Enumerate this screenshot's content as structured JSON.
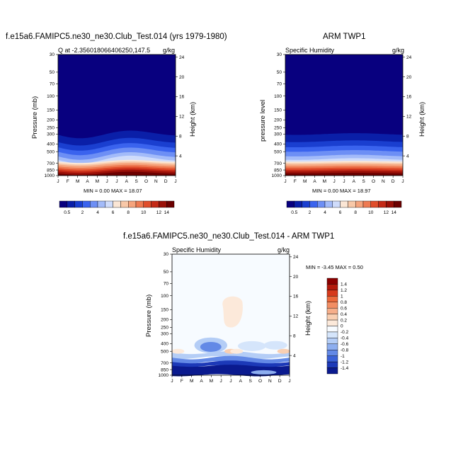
{
  "chart_data": [
    {
      "type": "heatmap",
      "title": "f.e15a6.FAMIPC5.ne30_ne30.Club_Test.014 (yrs 1979-1980)",
      "subtitle_left": "Q at -2.356018066406250,147.5",
      "units": "g/kg",
      "ylabel": "Pressure (mb)",
      "y2label": "Height (km)",
      "x_ticks": [
        "J",
        "F",
        "M",
        "A",
        "M",
        "J",
        "J",
        "A",
        "S",
        "O",
        "N",
        "D",
        "J"
      ],
      "y_ticks": [
        "30",
        "50",
        "70",
        "100",
        "150",
        "200",
        "250",
        "300",
        "400",
        "500",
        "700",
        "850",
        "1000"
      ],
      "y2_ticks": [
        "24",
        "20",
        "16",
        "12",
        "8",
        "4"
      ],
      "min_max_text": "MIN =   0.00 MAX =  18.07",
      "min": 0.0,
      "max": 18.07,
      "colorbar_labels": [
        "0.5",
        "2",
        "4",
        "6",
        "8",
        "10",
        "12",
        "14"
      ]
    },
    {
      "type": "heatmap",
      "title": "ARM TWP1",
      "subtitle_left": "Specific Humidity",
      "units": "g/kg",
      "ylabel": "pressure level",
      "y2label": "Height (km)",
      "x_ticks": [
        "J",
        "F",
        "M",
        "A",
        "M",
        "J",
        "J",
        "A",
        "S",
        "O",
        "N",
        "D",
        "J"
      ],
      "y_ticks": [
        "30",
        "50",
        "70",
        "100",
        "150",
        "200",
        "250",
        "300",
        "400",
        "500",
        "700",
        "850",
        "1000"
      ],
      "y2_ticks": [
        "24",
        "20",
        "16",
        "12",
        "8",
        "4"
      ],
      "min_max_text": "MIN =   0.00 MAX =  18.97",
      "min": 0.0,
      "max": 18.97,
      "colorbar_labels": [
        "0.5",
        "2",
        "4",
        "6",
        "8",
        "10",
        "12",
        "14"
      ]
    },
    {
      "type": "heatmap",
      "title": "f.e15a6.FAMIPC5.ne30_ne30.Club_Test.014 - ARM TWP1",
      "subtitle_left": "Specific Humidity",
      "units": "g/kg",
      "ylabel": "Pressure (mb)",
      "y2label": "Height (km)",
      "x_ticks": [
        "J",
        "F",
        "M",
        "A",
        "M",
        "J",
        "J",
        "A",
        "S",
        "O",
        "N",
        "D",
        "J"
      ],
      "y_ticks": [
        "30",
        "50",
        "70",
        "100",
        "150",
        "200",
        "250",
        "300",
        "400",
        "500",
        "700",
        "850",
        "1000"
      ],
      "y2_ticks": [
        "24",
        "20",
        "16",
        "12",
        "8",
        "4"
      ],
      "min_max_text": "MIN =  -3.45 MAX =   0.50",
      "min": -3.45,
      "max": 0.5,
      "colorbar_labels": [
        "1.4",
        "1.2",
        "1",
        "0.8",
        "0.6",
        "0.4",
        "0.2",
        "0",
        "-0.2",
        "-0.4",
        "-0.6",
        "-0.8",
        "-1",
        "-1.2",
        "-1.4"
      ]
    }
  ],
  "colors": {
    "abs_scale": [
      "#08007f",
      "#0a1fa8",
      "#1a3fd0",
      "#3a63ee",
      "#6d8ff5",
      "#a3bbf9",
      "#cfdcfb",
      "#fbe6d5",
      "#f8c8a8",
      "#f5a47d",
      "#ee7a52",
      "#e04e2c",
      "#c42a17",
      "#9a1008",
      "#6c0000"
    ],
    "diff_scale": [
      "#8b0000",
      "#b31a0c",
      "#d63a1c",
      "#ec6a3c",
      "#f28e64",
      "#f6ae8a",
      "#f9cfb2",
      "#fce9da",
      "#f7fbff",
      "#d5e5fb",
      "#b4cdf6",
      "#8daeef",
      "#6389e6",
      "#3b62d8",
      "#1c39b8",
      "#0a1a8f"
    ]
  }
}
